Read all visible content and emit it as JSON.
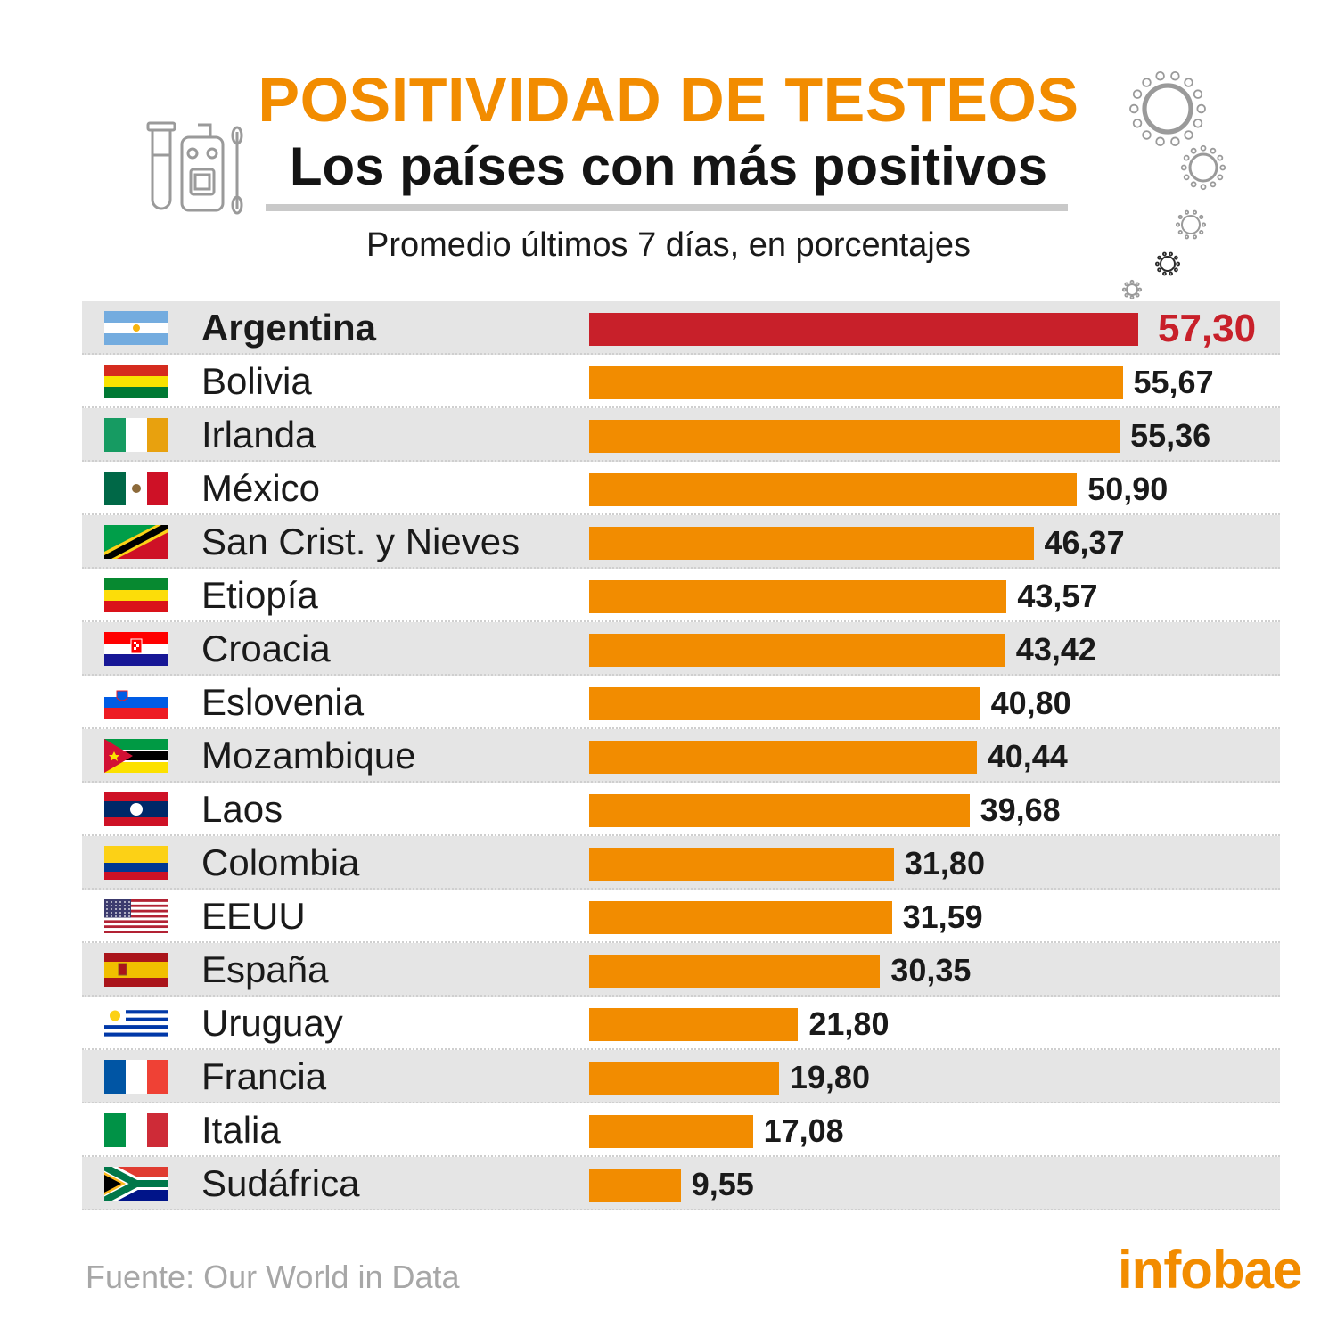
{
  "header": {
    "title": "POSITIVIDAD DE TESTEOS",
    "subtitle": "Los países con más positivos",
    "description": "Promedio últimos 7 días, en porcentajes"
  },
  "footer": {
    "source": "Fuente: Our World in Data",
    "brand": "infobae"
  },
  "colors": {
    "bar": "#f28c00",
    "highlight": "#c8202a",
    "row_stripe": "#e5e5e5",
    "title": "#f28c00"
  },
  "icons": [
    "test-tube-icon",
    "virus-icon"
  ],
  "chart_data": {
    "type": "bar",
    "orientation": "horizontal",
    "title": "POSITIVIDAD DE TESTEOS",
    "subtitle": "Los países con más positivos",
    "xlabel": "",
    "ylabel": "",
    "xlim": [
      0,
      57.3
    ],
    "grid": false,
    "highlight_category": "Argentina",
    "categories": [
      "Argentina",
      "Bolivia",
      "Irlanda",
      "México",
      "San Crist. y Nieves",
      "Etiopía",
      "Croacia",
      "Eslovenia",
      "Mozambique",
      "Laos",
      "Colombia",
      "EEUU",
      "España",
      "Uruguay",
      "Francia",
      "Italia",
      "Sudáfrica"
    ],
    "values": [
      57.3,
      55.67,
      55.36,
      50.9,
      46.37,
      43.57,
      43.42,
      40.8,
      40.44,
      39.68,
      31.8,
      31.59,
      30.35,
      21.8,
      19.8,
      17.08,
      9.55
    ],
    "value_labels": [
      "57,30",
      "55,67",
      "55,36",
      "50,90",
      "46,37",
      "43,57",
      "43,42",
      "40,80",
      "40,44",
      "39,68",
      "31,80",
      "31,59",
      "30,35",
      "21,80",
      "19,80",
      "17,08",
      "9,55"
    ],
    "flags": [
      "argentina",
      "bolivia",
      "ireland",
      "mexico",
      "saint-kitts-nevis",
      "ethiopia",
      "croatia",
      "slovenia",
      "mozambique",
      "laos",
      "colombia",
      "usa",
      "spain",
      "uruguay",
      "france",
      "italy",
      "south-africa"
    ]
  }
}
